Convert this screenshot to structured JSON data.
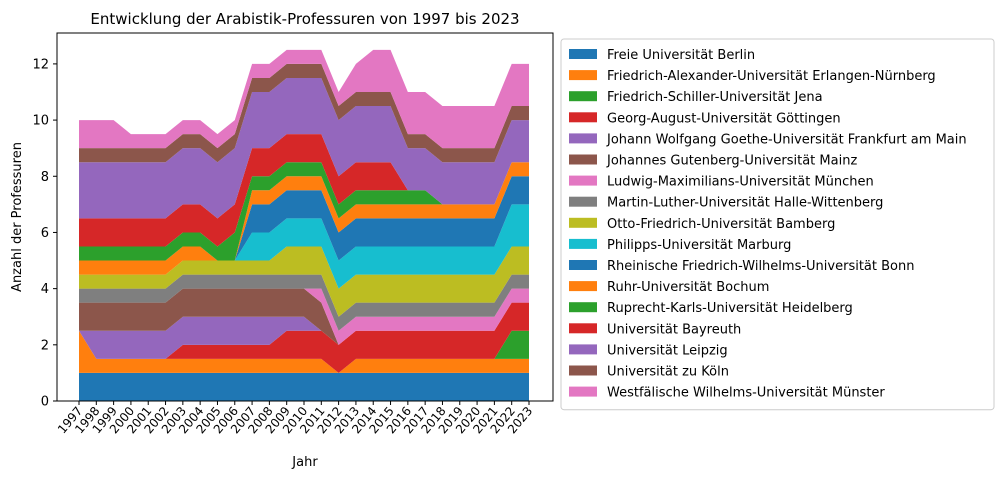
{
  "chart_data": {
    "type": "area",
    "stacked": true,
    "title": "Entwicklung der Arabistik-Professuren von 1997 bis 2023",
    "xlabel": "Jahr",
    "ylabel": "Anzahl der Professuren",
    "ylim": [
      0,
      13.1
    ],
    "yticks": [
      0,
      2,
      4,
      6,
      8,
      10,
      12
    ],
    "legend_position": "outside-right",
    "grid": false,
    "x": [
      "1997",
      "1998",
      "1999",
      "2000",
      "2001",
      "2002",
      "2003",
      "2004",
      "2005",
      "2006",
      "2007",
      "2008",
      "2009",
      "2010",
      "2011",
      "2012",
      "2013",
      "2014",
      "2015",
      "2016",
      "2017",
      "2018",
      "2019",
      "2020",
      "2021",
      "2022",
      "2023"
    ],
    "series": [
      {
        "name": "Freie Universität Berlin",
        "color": "#1f77b4",
        "values": [
          1,
          1,
          1,
          1,
          1,
          1,
          1,
          1,
          1,
          1,
          1,
          1,
          1,
          1,
          1,
          1,
          1,
          1,
          1,
          1,
          1,
          1,
          1,
          1,
          1,
          1,
          1
        ]
      },
      {
        "name": "Friedrich-Alexander-Universität Erlangen-Nürnberg",
        "color": "#ff7f0e",
        "values": [
          1.5,
          0.5,
          0.5,
          0.5,
          0.5,
          0.5,
          0.5,
          0.5,
          0.5,
          0.5,
          0.5,
          0.5,
          0.5,
          0.5,
          0.5,
          0,
          0.5,
          0.5,
          0.5,
          0.5,
          0.5,
          0.5,
          0.5,
          0.5,
          0.5,
          0.5,
          0.5
        ]
      },
      {
        "name": "Friedrich-Schiller-Universität Jena",
        "color": "#2ca02c",
        "values": [
          0,
          0,
          0,
          0,
          0,
          0,
          0,
          0,
          0,
          0,
          0,
          0,
          0,
          0,
          0,
          0,
          0,
          0,
          0,
          0,
          0,
          0,
          0,
          0,
          0,
          1,
          1
        ]
      },
      {
        "name": "Georg-August-Universität Göttingen",
        "color": "#d62728",
        "values": [
          0,
          0,
          0,
          0,
          0,
          0,
          0.5,
          0.5,
          0.5,
          0.5,
          0.5,
          0.5,
          1,
          1,
          1,
          1,
          1,
          1,
          1,
          1,
          1,
          1,
          1,
          1,
          1,
          1,
          1
        ]
      },
      {
        "name": "Johann Wolfgang Goethe-Universität Frankfurt am Main",
        "color": "#9467bd",
        "values": [
          0,
          1,
          1,
          1,
          1,
          1,
          1,
          1,
          1,
          1,
          1,
          1,
          0.5,
          0.5,
          0,
          0,
          0,
          0,
          0,
          0,
          0,
          0,
          0,
          0,
          0,
          0,
          0
        ]
      },
      {
        "name": "Johannes Gutenberg-Universität Mainz",
        "color": "#8c564b",
        "values": [
          1,
          1,
          1,
          1,
          1,
          1,
          1,
          1,
          1,
          1,
          1,
          1,
          1,
          1,
          1,
          0,
          0,
          0,
          0,
          0,
          0,
          0,
          0,
          0,
          0,
          0,
          0
        ]
      },
      {
        "name": "Ludwig-Maximilians-Universität München",
        "color": "#e377c2",
        "values": [
          0,
          0,
          0,
          0,
          0,
          0,
          0,
          0,
          0,
          0,
          0,
          0,
          0,
          0,
          0.5,
          0.5,
          0.5,
          0.5,
          0.5,
          0.5,
          0.5,
          0.5,
          0.5,
          0.5,
          0.5,
          0.5,
          0.5
        ]
      },
      {
        "name": "Martin-Luther-Universität Halle-Wittenberg",
        "color": "#7f7f7f",
        "values": [
          0.5,
          0.5,
          0.5,
          0.5,
          0.5,
          0.5,
          0.5,
          0.5,
          0.5,
          0.5,
          0.5,
          0.5,
          0.5,
          0.5,
          0.5,
          0.5,
          0.5,
          0.5,
          0.5,
          0.5,
          0.5,
          0.5,
          0.5,
          0.5,
          0.5,
          0.5,
          0.5
        ]
      },
      {
        "name": "Otto-Friedrich-Universität Bamberg",
        "color": "#bcbd22",
        "values": [
          0.5,
          0.5,
          0.5,
          0.5,
          0.5,
          0.5,
          0.5,
          0.5,
          0.5,
          0.5,
          0.5,
          0.5,
          1,
          1,
          1,
          1,
          1,
          1,
          1,
          1,
          1,
          1,
          1,
          1,
          1,
          1,
          1
        ]
      },
      {
        "name": "Philipps-Universität Marburg",
        "color": "#17becf",
        "values": [
          0,
          0,
          0,
          0,
          0,
          0,
          0,
          0,
          0,
          0,
          1,
          1,
          1,
          1,
          1,
          1,
          1,
          1,
          1,
          1,
          1,
          1,
          1,
          1,
          1,
          1.5,
          1.5
        ]
      },
      {
        "name": "Rheinische Friedrich-Wilhelms-Universität Bonn",
        "color": "#1f77b4",
        "values": [
          0,
          0,
          0,
          0,
          0,
          0,
          0,
          0,
          0,
          0,
          1,
          1,
          1,
          1,
          1,
          1,
          1,
          1,
          1,
          1,
          1,
          1,
          1,
          1,
          1,
          1,
          1
        ]
      },
      {
        "name": "Ruhr-Universität Bochum",
        "color": "#ff7f0e",
        "values": [
          0.5,
          0.5,
          0.5,
          0.5,
          0.5,
          0.5,
          0.5,
          0.5,
          0,
          0,
          0.5,
          0.5,
          0.5,
          0.5,
          0.5,
          0.5,
          0.5,
          0.5,
          0.5,
          0.5,
          0.5,
          0.5,
          0.5,
          0.5,
          0.5,
          0.5,
          0.5
        ]
      },
      {
        "name": "Ruprecht-Karls-Universität Heidelberg",
        "color": "#2ca02c",
        "values": [
          0.5,
          0.5,
          0.5,
          0.5,
          0.5,
          0.5,
          0.5,
          0.5,
          0.5,
          1,
          0.5,
          0.5,
          0.5,
          0.5,
          0.5,
          0.5,
          0.5,
          0.5,
          0.5,
          0.5,
          0.5,
          0,
          0,
          0,
          0,
          0,
          0
        ]
      },
      {
        "name": "Universität Bayreuth",
        "color": "#d62728",
        "values": [
          1,
          1,
          1,
          1,
          1,
          1,
          1,
          1,
          1,
          1,
          1,
          1,
          1,
          1,
          1,
          1,
          1,
          1,
          1,
          0,
          0,
          0,
          0,
          0,
          0,
          0,
          0
        ]
      },
      {
        "name": "Universität Leipzig",
        "color": "#9467bd",
        "values": [
          2,
          2,
          2,
          2,
          2,
          2,
          2,
          2,
          2,
          2,
          2,
          2,
          2,
          2,
          2,
          2,
          2,
          2,
          2,
          1.5,
          1.5,
          1.5,
          1.5,
          1.5,
          1.5,
          1.5,
          1.5
        ]
      },
      {
        "name": "Universität zu Köln",
        "color": "#8c564b",
        "values": [
          0.5,
          0.5,
          0.5,
          0.5,
          0.5,
          0.5,
          0.5,
          0.5,
          0.5,
          0.5,
          0.5,
          0.5,
          0.5,
          0.5,
          0.5,
          0.5,
          0.5,
          0.5,
          0.5,
          0.5,
          0.5,
          0.5,
          0.5,
          0.5,
          0.5,
          0.5,
          0.5
        ]
      },
      {
        "name": "Westfälische Wilhelms-Universität Münster",
        "color": "#e377c2",
        "values": [
          1,
          1,
          1,
          0.5,
          0.5,
          0.5,
          0.5,
          0.5,
          0.5,
          0.5,
          0.5,
          0.5,
          0.5,
          0.5,
          0.5,
          0.5,
          1,
          1.5,
          1.5,
          1.5,
          1.5,
          1.5,
          1.5,
          1.5,
          1.5,
          1.5,
          1.5
        ]
      }
    ]
  }
}
